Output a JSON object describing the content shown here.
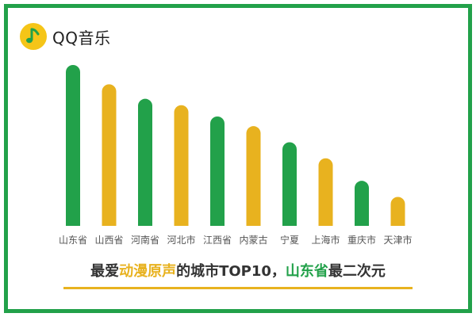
{
  "brand": {
    "name": "QQ音乐",
    "icon": "music-note-icon"
  },
  "colors": {
    "green": "#22a14a",
    "yellow": "#e8b21f",
    "frame": "#22a14a",
    "text": "#333333"
  },
  "chart_data": {
    "type": "bar",
    "categories": [
      "山东省",
      "山西省",
      "河南省",
      "河北市",
      "江西省",
      "内蒙古",
      "宁夏",
      "上海市",
      "重庆市",
      "天津市"
    ],
    "values": [
      100,
      88,
      79,
      75,
      68,
      62,
      52,
      42,
      28,
      18
    ],
    "bar_colors": [
      "#22a14a",
      "#e8b21f",
      "#22a14a",
      "#e8b21f",
      "#22a14a",
      "#e8b21f",
      "#22a14a",
      "#e8b21f",
      "#22a14a",
      "#e8b21f"
    ],
    "ylim": [
      0,
      100
    ],
    "axis_visible": false,
    "grid": false,
    "value_labels": false
  },
  "caption": {
    "part1": "最爱",
    "highlight1": "动漫原声",
    "part2": "的城市TOP10，",
    "highlight2": "山东省",
    "part3": "最二次元"
  }
}
